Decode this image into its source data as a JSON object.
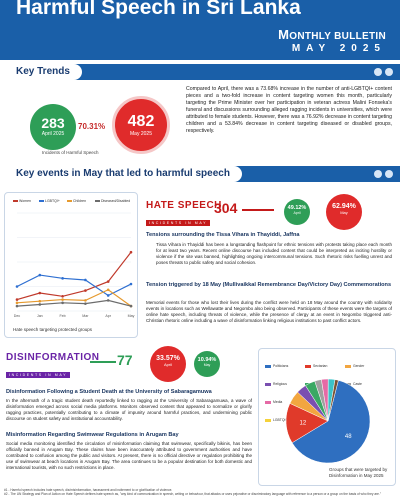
{
  "header": {
    "title": "Harmful Speech in Sri Lanka",
    "bulletin_big": "M",
    "bulletin_rest": "ONTHLY BULLETIN",
    "month_year": "MAY 2025"
  },
  "key_trends": {
    "heading": "Key Trends",
    "april": {
      "value": "283",
      "label": "April 2025"
    },
    "may": {
      "value": "482",
      "label": "May 2025"
    },
    "change_pct": "70.31%",
    "caption": "Incidents of Harmful Speech",
    "summary": "Compared to April, there was a 73.68% increase in the number of anti-LGBTQI+ content pieces and a two-fold increase in content targeting women this month, particularly targeting the Prime Minister over her participation in veteran actress Malini Fonseka's funeral and discussions surrounding alleged ragging incidents in universities, which were attributed to female students. However, there was a 76.92% decrease in content targeting children and a 53.84% decrease in content targeting diseased or disabled groups, respectively."
  },
  "key_events": {
    "heading": "Key events in May that led to harmful speech"
  },
  "chart_data": {
    "type": "line",
    "title": "",
    "caption": "Hate speech targeting protected groups",
    "xlabel": "",
    "ylabel": "",
    "x": [
      "Dec",
      "Jan",
      "Feb",
      "Mar",
      "Apr",
      "May"
    ],
    "ylim": [
      0,
      120
    ],
    "grid": true,
    "legend": "top",
    "series": [
      {
        "name": "Women",
        "color": "#c0392b",
        "values": [
          14,
          22,
          18,
          25,
          36,
          72
        ]
      },
      {
        "name": "LGBTQI+",
        "color": "#2e6fd1",
        "values": [
          30,
          44,
          40,
          38,
          19,
          33
        ]
      },
      {
        "name": "Children",
        "color": "#e69a2e",
        "values": [
          10,
          12,
          14,
          13,
          26,
          6
        ]
      },
      {
        "name": "Diseased/Disabled",
        "color": "#6c6c6c",
        "values": [
          6,
          8,
          10,
          9,
          13,
          6
        ]
      }
    ]
  },
  "hate_speech": {
    "title": "HATE SPEECH",
    "subtitle": "INCIDENTS IN MAY",
    "count": "304",
    "change_small": "49.12%",
    "change_small_label": "April",
    "change_big": "62.94%",
    "change_big_label": "May"
  },
  "events": [
    {
      "heading": "Tensions surrounding the Tissa Vihara in Thayiddi, Jaffna",
      "text": "Tissa Vihara in Thayiddi has been a longstanding flashpoint for ethnic tensions with protests taking place each month for at least two years. Recent online discourse has included content that could be interpreted as inciting hostility or violence if the site was banned, highlighting ongoing intercommunal tensions. Such rhetoric risks fuelling unrest and poses threats to public safety and social cohesion."
    },
    {
      "heading": "Tension triggered by 18 May (Mullivaikkal Remembrance Day/Victory Day) Commemorations",
      "text": "Memorial events for those who lost their lives during the conflict were held on 18 May around the country with solidarity events in locations such as Wellawatte and Negombo also being observed. Participants of these events were the targets of online hate speech, including threats of violence, while the presence of clergy at an event in Negombo triggered anti-Christian rhetoric online including a wave of disinformation linking religious institutions to past conflict actors."
    }
  ],
  "disinformation": {
    "title": "DISINFORMATION",
    "subtitle": "INCIDENTS IN MAY",
    "count": "77",
    "change_small": "10.94%",
    "change_small_label": "May",
    "change_big": "33.57%",
    "change_big_label": "April"
  },
  "disinfo_events": [
    {
      "heading": "Disinformation Following a Student Death at the University of Sabaragamuwa",
      "text": "In the aftermath of a tragic student death reportedly linked to ragging at the University of Sabaragamuwa, a wave of disinformation emerged across social media platforms. Monitors observed content that appeared to normalize or glorify ragging practices, potentially contributing to a climate of impunity around harmful practices, and undermining public discourse on student safety and institutional accountability."
    },
    {
      "heading": "Misinformation Regarding Swimwear Regulations in Arugam Bay",
      "text": "Social media monitoring identified the circulation of misinformation claiming that swimwear, specifically bikinis, has been officially banned in Arugam Bay. These claims have been inaccurately attributed to government authorities and have contributed to confusion among the public and visitors. At present, there is no official directive or regulation prohibiting the use of swimwear at beach locations in Arugam Bay. The area continues to be a popular destination for both domestic and international tourists, with no such restrictions in place."
    }
  ],
  "pie": {
    "caption": "Groups that were targeted by Disinformation in May 2025",
    "legend": [
      {
        "name": "Politicians",
        "color": "#2f6fc0"
      },
      {
        "name": "Sectarian",
        "color": "#e03a2a"
      },
      {
        "name": "Gender",
        "color": "#f2a640"
      },
      {
        "name": "Religious",
        "color": "#7a4fb0"
      },
      {
        "name": "Ethnic",
        "color": "#3aa864"
      },
      {
        "name": "Caste",
        "color": "#a0a0a0"
      },
      {
        "name": "Media",
        "color": "#e56aa6"
      },
      {
        "name": "Foreign",
        "color": "#3cc3c8"
      },
      {
        "name": "Health",
        "color": "#7a5234"
      },
      {
        "name": "LGBTQI+",
        "color": "#f5d23a"
      },
      {
        "name": "Religious Actors",
        "color": "#a7c84a"
      },
      {
        "name": "Activists",
        "color": "#123e7a"
      }
    ],
    "slices": [
      {
        "name": "Politicians",
        "value": 48,
        "color": "#2f6fc0",
        "label": "48"
      },
      {
        "name": "Sectarian",
        "value": 12,
        "color": "#e03a2a",
        "label": "12"
      },
      {
        "name": "Gender",
        "value": 4,
        "color": "#f2a640",
        "label": ""
      },
      {
        "name": "Religious",
        "value": 3,
        "color": "#7a4fb0",
        "label": ""
      },
      {
        "name": "Ethnic",
        "value": 3,
        "color": "#3aa864",
        "label": ""
      },
      {
        "name": "Caste",
        "value": 2,
        "color": "#a0a0a0",
        "label": ""
      },
      {
        "name": "Media",
        "value": 2,
        "color": "#e56aa6",
        "label": ""
      },
      {
        "name": "Foreign",
        "value": 2,
        "color": "#3cc3c8",
        "label": ""
      },
      {
        "name": "Health",
        "value": 1,
        "color": "#7a5234",
        "label": ""
      }
    ]
  },
  "footnotes": [
    "#1 - Harmful speech includes hate speech, dis/misinformation, harassment and incitement to or glorification of violence.",
    "#2 - The UN Strategy and Plan of Action on Hate Speech defines hate speech as, \"any kind of communication in speech, writing or behaviour, that attacks or uses pejorative or discriminatory language with reference to a person or a group on the basis of who they are.\""
  ]
}
